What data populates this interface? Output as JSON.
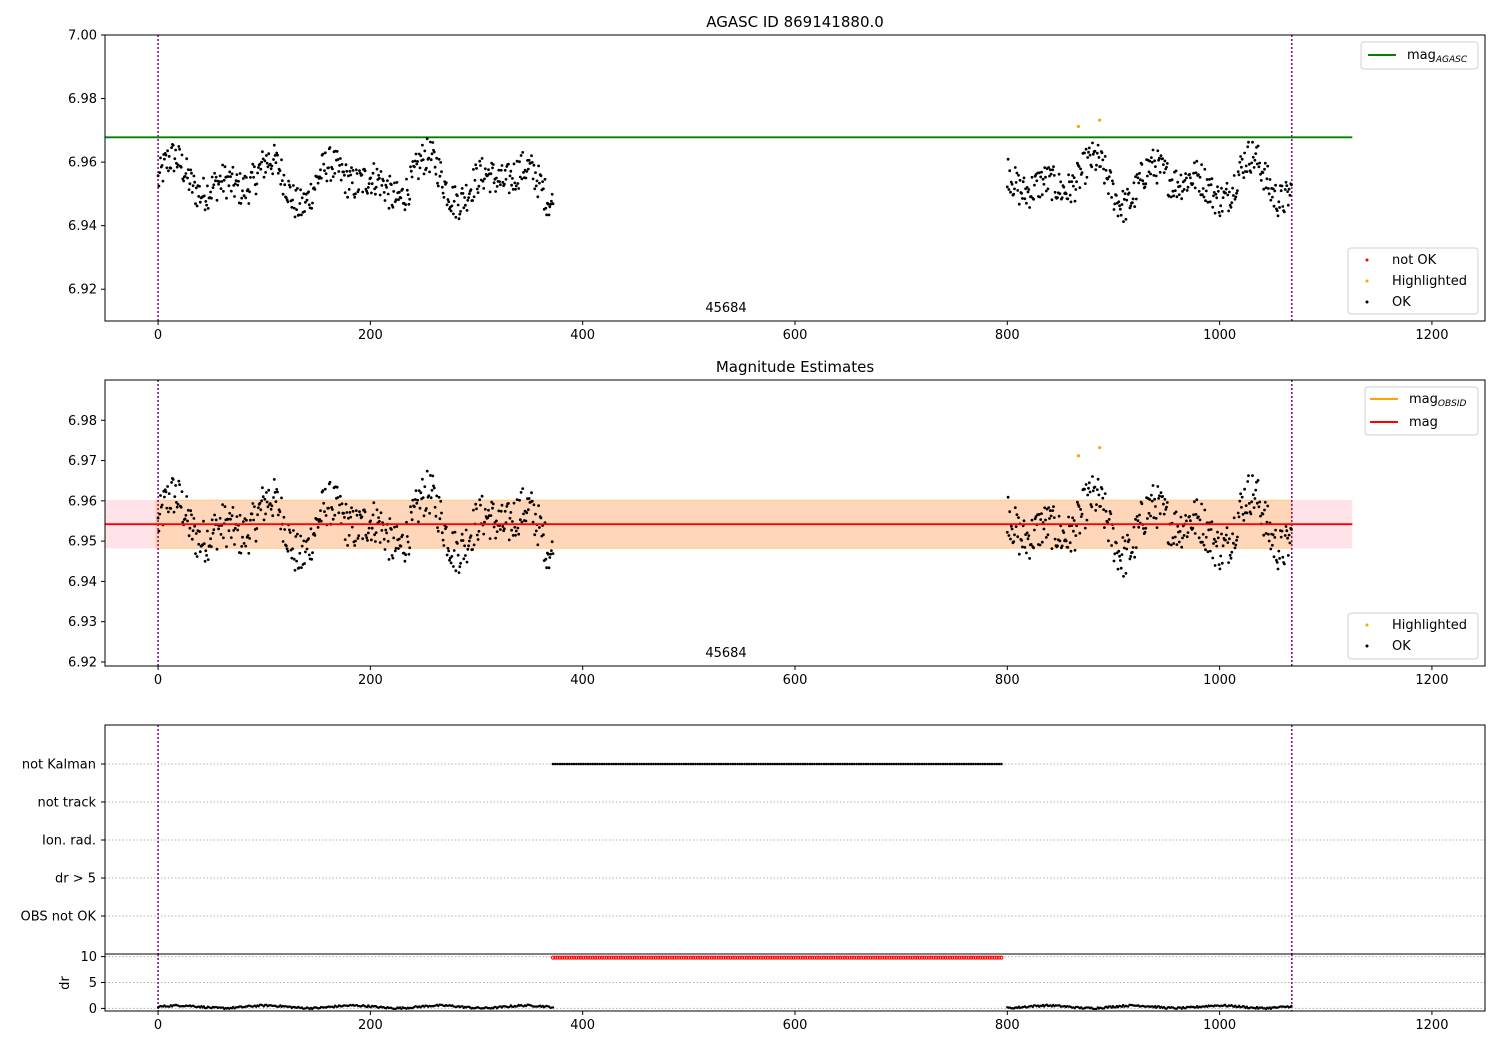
{
  "colors": {
    "ok": "#000000",
    "highlighted": "#ffa500",
    "not_ok": "#ff0000",
    "mag_agasc": "#008000",
    "mag_obsid": "#ffa500",
    "mag": "#ff0000",
    "band_outer": "#ffc0cb",
    "band_inner": "#ffa500",
    "vline": "#800080",
    "grid": "#b0b0b0"
  },
  "chart_data": [
    {
      "id": "top",
      "type": "scatter",
      "title": "AGASC ID 869141880.0",
      "xlim": [
        -50,
        1250
      ],
      "ylim": [
        6.91,
        7.0
      ],
      "xticks": [
        0,
        200,
        400,
        600,
        800,
        1000,
        1200
      ],
      "yticks": [
        6.92,
        6.94,
        6.96,
        6.98,
        7.0
      ],
      "ytick_decimals": 2,
      "obsid_label": {
        "text": "45684",
        "x": 535
      },
      "vlines": [
        0,
        1068
      ],
      "segments": [
        [
          0,
          372
        ],
        [
          800,
          1068
        ]
      ],
      "series_level": 6.954,
      "highlighted_points": [
        {
          "x": 867,
          "y": 6.9712
        },
        {
          "x": 887,
          "y": 6.9732
        }
      ],
      "hlines": [
        {
          "name": "mag_agasc",
          "y": 6.9678,
          "x": [
            -50,
            1125
          ]
        }
      ],
      "legend_lines": {
        "position": "top-right",
        "entries": [
          {
            "label": "mag",
            "sub": "AGASC"
          }
        ]
      },
      "legend_points": {
        "position": "bottom-right",
        "entries": [
          "not OK",
          "Highlighted",
          "OK"
        ]
      }
    },
    {
      "id": "middle",
      "type": "scatter",
      "title": "Magnitude Estimates",
      "xlim": [
        -50,
        1250
      ],
      "ylim": [
        6.919,
        6.99
      ],
      "xticks": [
        0,
        200,
        400,
        600,
        800,
        1000,
        1200
      ],
      "yticks": [
        6.92,
        6.93,
        6.94,
        6.95,
        6.96,
        6.97,
        6.98
      ],
      "ytick_decimals": 2,
      "obsid_label": {
        "text": "45684",
        "x": 535
      },
      "vlines": [
        0,
        1068
      ],
      "segments": [
        [
          0,
          372
        ],
        [
          800,
          1068
        ]
      ],
      "series_level": 6.954,
      "highlighted_points": [
        {
          "x": 867,
          "y": 6.9712
        },
        {
          "x": 887,
          "y": 6.9732
        }
      ],
      "mag": 6.9542,
      "band_outer": [
        6.9482,
        6.9602
      ],
      "band_inner": [
        6.9482,
        6.9602
      ],
      "band_x": [
        -50,
        1125
      ],
      "legend_lines": {
        "position": "top-right",
        "entries": [
          {
            "label": "mag",
            "sub": "OBSID"
          },
          {
            "label": "mag",
            "sub": ""
          }
        ]
      },
      "legend_points": {
        "position": "bottom-right",
        "entries": [
          "Highlighted",
          "OK"
        ]
      }
    },
    {
      "id": "flags",
      "type": "scatter",
      "xlim": [
        -50,
        1250
      ],
      "categories": [
        "not Kalman",
        "not track",
        "Ion. rad.",
        "dr > 5",
        "OBS not OK"
      ],
      "vlines": [
        0,
        1068
      ],
      "flag_ranges": [
        {
          "category": "not Kalman",
          "x": [
            372,
            795
          ]
        }
      ]
    },
    {
      "id": "dr",
      "type": "scatter",
      "ylabel": "dr",
      "xlim": [
        -50,
        1250
      ],
      "ylim": [
        -0.5,
        10.5
      ],
      "xticks": [
        0,
        200,
        400,
        600,
        800,
        1000,
        1200
      ],
      "yticks": [
        0,
        5,
        10
      ],
      "vlines": [
        0,
        1068
      ],
      "segments": [
        [
          0,
          372
        ],
        [
          800,
          1068
        ]
      ],
      "dr_level": 0.3,
      "clipped": {
        "x": [
          372,
          795
        ],
        "y": 9.8
      }
    }
  ]
}
